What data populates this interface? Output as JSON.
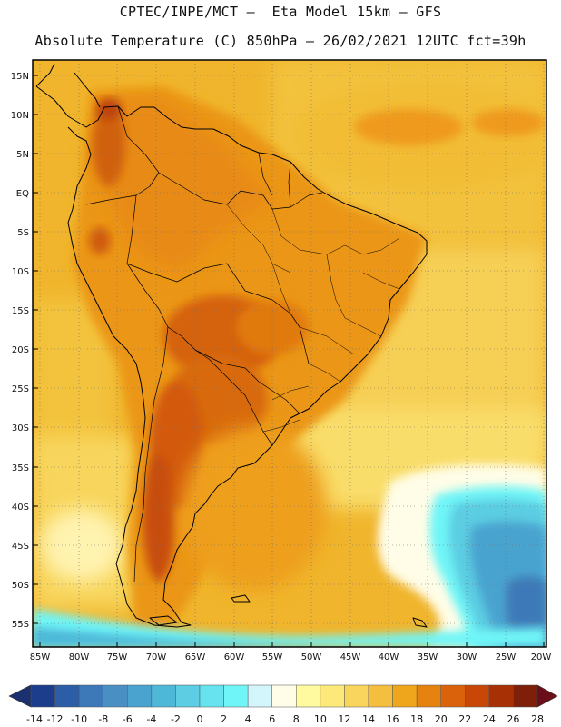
{
  "header": {
    "line1": "CPTEC/INPE/MCT –  Eta Model 15km – GFS",
    "line2": "Absolute Temperature (C) 850hPa – 26/02/2021 12UTC fct=39h"
  },
  "map": {
    "lat_labels": [
      "15N",
      "10N",
      "5N",
      "EQ",
      "5S",
      "10S",
      "15S",
      "20S",
      "25S",
      "30S",
      "35S",
      "40S",
      "45S",
      "50S",
      "55S"
    ],
    "lon_labels": [
      "85W",
      "80W",
      "75W",
      "70W",
      "65W",
      "60W",
      "55W",
      "50W",
      "45W",
      "40W",
      "35W",
      "30W",
      "25W",
      "20W"
    ]
  },
  "colorbar": {
    "labels": [
      "-14",
      "-12",
      "-10",
      "-8",
      "-6",
      "-4",
      "-2",
      "0",
      "2",
      "4",
      "6",
      "8",
      "10",
      "12",
      "14",
      "16",
      "18",
      "20",
      "22",
      "24",
      "26",
      "28"
    ],
    "colors": [
      "#1b3d8c",
      "#2b5ea7",
      "#3d79b8",
      "#4a8fc4",
      "#4aa3cf",
      "#4db8d8",
      "#5ccde2",
      "#66e3ee",
      "#6ff5f7",
      "#d2f6fb",
      "#fffde7",
      "#fffaa0",
      "#fde97a",
      "#f9d55d",
      "#f4bf3f",
      "#efa51c",
      "#e58210",
      "#d9620a",
      "#c84606",
      "#a73005",
      "#7e1f0a"
    ]
  }
}
